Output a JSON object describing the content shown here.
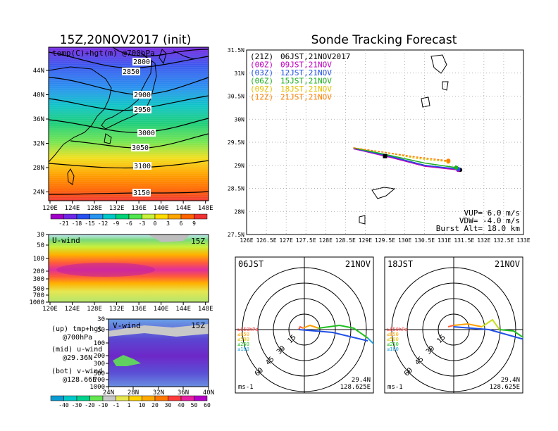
{
  "left_title": "15Z,20NOV2017 (init)",
  "right_title": "Sonde Tracking Forecast",
  "colors": {
    "temp_scale": [
      "#a000c8",
      "#6e28e6",
      "#2850f0",
      "#2896f0",
      "#00c8c8",
      "#00d278",
      "#50e650",
      "#c8f03c",
      "#ffdc00",
      "#ffa500",
      "#ff6400",
      "#f03232"
    ],
    "wind_scale": [
      "#0a9bd2",
      "#00c8c8",
      "#00d28c",
      "#64e650",
      "#c8c8c8",
      "#e6e650",
      "#ffd200",
      "#ffaa00",
      "#ff7800",
      "#ff3c3c",
      "#e61ea0",
      "#b400c8"
    ],
    "track": [
      "#000000",
      "#c000c0",
      "#2050e6",
      "#20b020",
      "#e6c000",
      "#ff8000"
    ]
  },
  "temp_map": {
    "label": "temp(C)+hgt(m) @700hPa",
    "lon_ticks": [
      "120E",
      "124E",
      "128E",
      "132E",
      "136E",
      "140E",
      "144E",
      "148E"
    ],
    "lat_ticks": [
      "44N",
      "40N",
      "36N",
      "32N",
      "28N",
      "24N"
    ],
    "contours": [
      "2800",
      "2850",
      "2900",
      "2950",
      "3000",
      "3050",
      "3100",
      "3150"
    ],
    "colorbar_labels": [
      "-21",
      "-18",
      "-15",
      "-12",
      "-9",
      "-6",
      "-3",
      "0",
      "3",
      "6",
      "9"
    ]
  },
  "uwind": {
    "label": "U-wind",
    "time": "15Z",
    "p_ticks": [
      "30",
      "50",
      "100",
      "200",
      "300",
      "500",
      "700",
      "1000"
    ],
    "lon_ticks": [
      "120E",
      "124E",
      "128E",
      "132E",
      "136E",
      "140E",
      "144E",
      "148E"
    ]
  },
  "vwind": {
    "label": "V-wind",
    "time": "15Z",
    "p_ticks": [
      "30",
      "50",
      "100",
      "200",
      "300",
      "500",
      "700",
      "1000"
    ],
    "lat_ticks": [
      "24N",
      "28N",
      "32N",
      "36N",
      "40N"
    ],
    "colorbar_labels": [
      "-40",
      "-30",
      "-20",
      "-10",
      "-1",
      "1",
      "10",
      "20",
      "30",
      "40",
      "50",
      "60"
    ]
  },
  "legend_notes": {
    "up": "(up) tmp+hgt",
    "up2": "@700hPa",
    "mid": "(mid) u-wind",
    "mid2": "@29.36N",
    "bot": "(bot) v-wind",
    "bot2": "@128.66E"
  },
  "track_legend": [
    {
      "code": "(21Z)",
      "label": "06JST,21NOV2017"
    },
    {
      "code": "(00Z)",
      "label": "09JST,21NOV"
    },
    {
      "code": "(03Z)",
      "label": "12JST,21NOV"
    },
    {
      "code": "(06Z)",
      "label": "15JST,21NOV"
    },
    {
      "code": "(09Z)",
      "label": "18JST,21NOV"
    },
    {
      "code": "(12Z)",
      "label": "21JST,21NOV"
    }
  ],
  "track_params": {
    "vup": "VUP= 6.0 m/s",
    "vdw": "VDW= -4.0 m/s",
    "burst": "Burst Alt= 18.0 km"
  },
  "polar_left": {
    "time": "06JST",
    "date": "21NOV",
    "lat": "29.4N",
    "lon": "128.625E",
    "unit": "ms-1",
    "rings": [
      "15",
      "30",
      "45",
      "60"
    ],
    "levels": [
      "≥850hPa",
      "≤850",
      "≤500",
      "≤250",
      "≤100"
    ]
  },
  "polar_right": {
    "time": "18JST",
    "date": "21NOV",
    "lat": "29.4N",
    "lon": "128.625E",
    "unit": "ms-1",
    "rings": [
      "15",
      "30",
      "45",
      "60"
    ],
    "levels": [
      "≥850hPa",
      "≤850",
      "≤500",
      "≤250",
      "≤100"
    ]
  },
  "chart_data": {
    "type": "line",
    "title": "Sonde Tracking Forecast",
    "xlabel": "",
    "ylabel": "",
    "xlim": [
      126,
      133
    ],
    "ylim": [
      27.5,
      31.5
    ],
    "x_ticks": [
      "126E",
      "126.5E",
      "127E",
      "127.5E",
      "128E",
      "128.5E",
      "129E",
      "129.5E",
      "130E",
      "130.5E",
      "131E",
      "131.5E",
      "132E",
      "132.5E",
      "133E"
    ],
    "y_ticks": [
      "27.5N",
      "28N",
      "28.5N",
      "29N",
      "29.5N",
      "30N",
      "30.5N",
      "31N",
      "31.5N"
    ],
    "series": [
      {
        "name": "06JST,21NOV2017",
        "lon": [
          128.7,
          129.6,
          130.5,
          131.4
        ],
        "lat": [
          29.36,
          29.2,
          29.0,
          28.9
        ]
      },
      {
        "name": "09JST,21NOV",
        "lon": [
          128.7,
          129.6,
          130.5,
          131.35
        ],
        "lat": [
          29.36,
          29.18,
          28.98,
          28.9
        ]
      },
      {
        "name": "12JST,21NOV",
        "lon": [
          128.7,
          129.6,
          130.5,
          131.35
        ],
        "lat": [
          29.37,
          29.2,
          29.0,
          28.92
        ]
      },
      {
        "name": "15JST,21NOV",
        "lon": [
          128.7,
          129.6,
          130.5,
          131.3
        ],
        "lat": [
          29.38,
          29.22,
          29.05,
          28.95
        ]
      },
      {
        "name": "18JST,21NOV",
        "lon": [
          128.7,
          129.5,
          130.3,
          131.1
        ],
        "lat": [
          29.38,
          29.28,
          29.15,
          29.08
        ]
      },
      {
        "name": "21JST,21NOV",
        "lon": [
          128.7,
          129.5,
          130.3,
          131.1
        ],
        "lat": [
          29.38,
          29.28,
          29.18,
          29.1
        ]
      }
    ]
  }
}
